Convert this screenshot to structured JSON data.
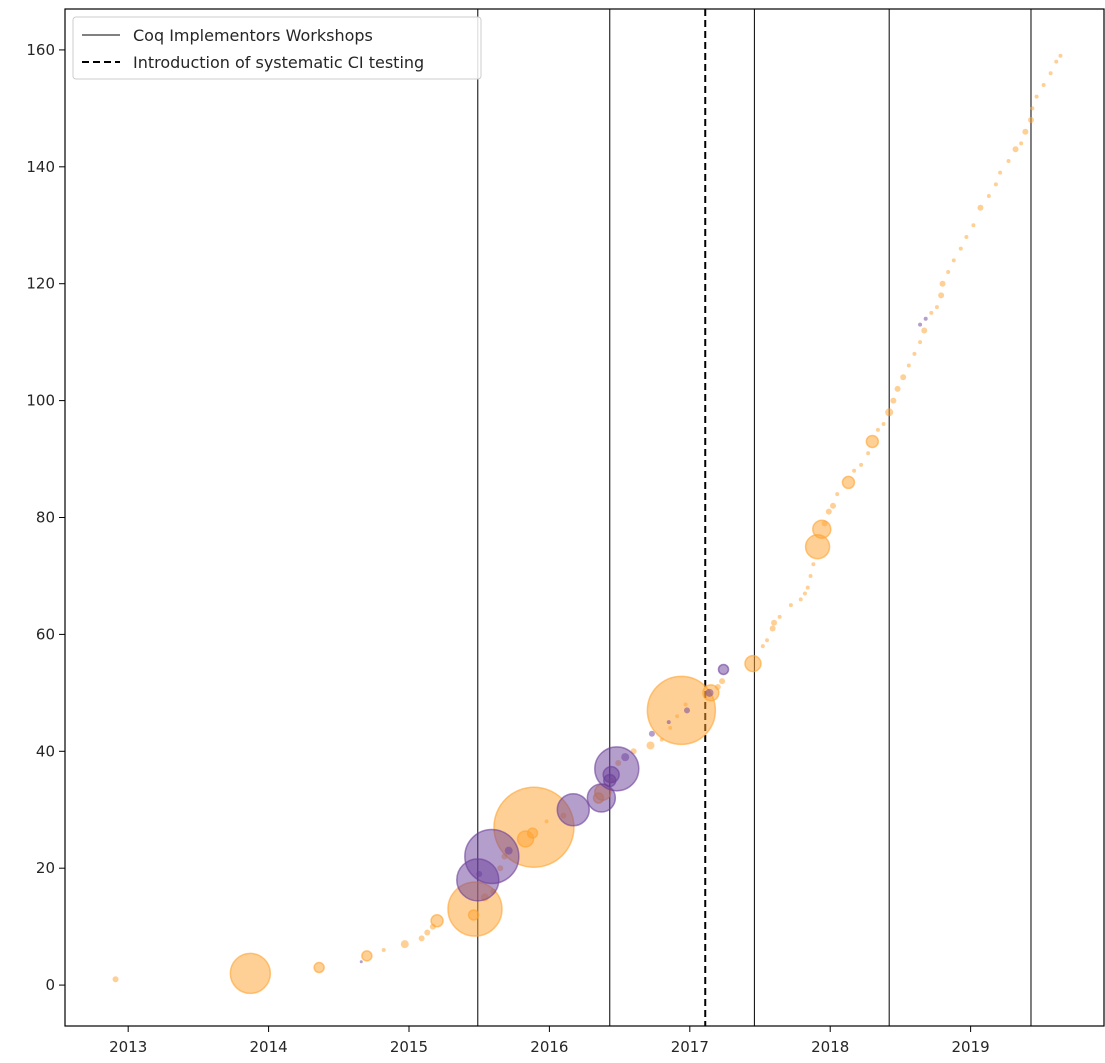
{
  "chart_data": {
    "type": "scatter",
    "title": "",
    "xlabel": "",
    "ylabel": "",
    "xlim": [
      2012.55,
      2019.95
    ],
    "ylim": [
      -7,
      167
    ],
    "x_ticks": [
      {
        "value": 2013,
        "label": "2013"
      },
      {
        "value": 2014,
        "label": "2014"
      },
      {
        "value": 2015,
        "label": "2015"
      },
      {
        "value": 2016,
        "label": "2016"
      },
      {
        "value": 2017,
        "label": "2017"
      },
      {
        "value": 2018,
        "label": "2018"
      },
      {
        "value": 2019,
        "label": "2019"
      }
    ],
    "y_ticks": [
      {
        "value": 0,
        "label": "0"
      },
      {
        "value": 20,
        "label": "20"
      },
      {
        "value": 40,
        "label": "40"
      },
      {
        "value": 60,
        "label": "60"
      },
      {
        "value": 80,
        "label": "80"
      },
      {
        "value": 100,
        "label": "100"
      },
      {
        "value": 120,
        "label": "120"
      },
      {
        "value": 140,
        "label": "140"
      },
      {
        "value": 160,
        "label": "160"
      }
    ],
    "grid": false,
    "legend": {
      "placement": "top-left",
      "entries": [
        {
          "label": "Coq Implementors Workshops",
          "style": "solid"
        },
        {
          "label": "Introduction of systematic CI testing",
          "style": "dashed"
        }
      ]
    },
    "vertical_lines": [
      {
        "x": 2015.49,
        "style": "solid"
      },
      {
        "x": 2016.43,
        "style": "solid"
      },
      {
        "x": 2017.11,
        "style": "dashed"
      },
      {
        "x": 2017.46,
        "style": "solid"
      },
      {
        "x": 2018.42,
        "style": "solid"
      },
      {
        "x": 2019.43,
        "style": "solid"
      }
    ],
    "colors": {
      "orange": "#ffa12e",
      "purple": "#6a3d9a"
    },
    "series": [
      {
        "color": "orange",
        "points": [
          [
            2012.91,
            1,
            3
          ],
          [
            2013.87,
            2,
            20
          ],
          [
            2014.36,
            3,
            5
          ],
          [
            2014.7,
            5,
            5
          ],
          [
            2014.82,
            6,
            2
          ],
          [
            2014.97,
            7,
            4
          ],
          [
            2015.09,
            8,
            3
          ],
          [
            2015.13,
            9,
            3
          ],
          [
            2015.17,
            10,
            3
          ],
          [
            2015.2,
            11,
            6
          ],
          [
            2015.46,
            12,
            5
          ],
          [
            2015.47,
            13,
            27
          ],
          [
            2015.54,
            15,
            4
          ],
          [
            2015.6,
            16,
            3
          ],
          [
            2015.65,
            20,
            3
          ],
          [
            2015.68,
            22,
            3
          ],
          [
            2015.83,
            25,
            8
          ],
          [
            2015.88,
            26,
            5
          ],
          [
            2015.89,
            27,
            40
          ],
          [
            2015.98,
            28,
            2
          ],
          [
            2016.1,
            29,
            3
          ],
          [
            2016.35,
            32,
            5
          ],
          [
            2016.38,
            33,
            8
          ],
          [
            2016.44,
            35,
            3
          ],
          [
            2016.49,
            38,
            3
          ],
          [
            2016.6,
            40,
            3
          ],
          [
            2016.72,
            41,
            4
          ],
          [
            2016.8,
            42,
            2
          ],
          [
            2016.86,
            44,
            2
          ],
          [
            2016.91,
            46,
            2
          ],
          [
            2016.94,
            47,
            34
          ],
          [
            2016.97,
            48,
            2
          ],
          [
            2017.15,
            50,
            8
          ],
          [
            2017.2,
            51,
            3
          ],
          [
            2017.23,
            52,
            3
          ],
          [
            2017.45,
            55,
            8
          ],
          [
            2017.52,
            58,
            2
          ],
          [
            2017.55,
            59,
            2
          ],
          [
            2017.59,
            61,
            3
          ],
          [
            2017.6,
            62,
            3
          ],
          [
            2017.64,
            63,
            2
          ],
          [
            2017.72,
            65,
            2
          ],
          [
            2017.79,
            66,
            2
          ],
          [
            2017.82,
            67,
            2
          ],
          [
            2017.84,
            68,
            2
          ],
          [
            2017.86,
            70,
            2
          ],
          [
            2017.88,
            72,
            2
          ],
          [
            2017.91,
            75,
            12
          ],
          [
            2017.94,
            78,
            9
          ],
          [
            2017.96,
            79,
            3
          ],
          [
            2017.99,
            81,
            3
          ],
          [
            2018.02,
            82,
            3
          ],
          [
            2018.05,
            84,
            2
          ],
          [
            2018.13,
            86,
            6
          ],
          [
            2018.17,
            88,
            2
          ],
          [
            2018.22,
            89,
            2
          ],
          [
            2018.27,
            91,
            2
          ],
          [
            2018.3,
            93,
            6
          ],
          [
            2018.34,
            95,
            2
          ],
          [
            2018.38,
            96,
            2
          ],
          [
            2018.42,
            98,
            4
          ],
          [
            2018.45,
            100,
            3
          ],
          [
            2018.48,
            102,
            3
          ],
          [
            2018.52,
            104,
            3
          ],
          [
            2018.56,
            106,
            2
          ],
          [
            2018.6,
            108,
            2
          ],
          [
            2018.64,
            110,
            2
          ],
          [
            2018.67,
            112,
            3
          ],
          [
            2018.72,
            115,
            2
          ],
          [
            2018.76,
            116,
            2
          ],
          [
            2018.79,
            118,
            3
          ],
          [
            2018.8,
            120,
            3
          ],
          [
            2018.84,
            122,
            2
          ],
          [
            2018.88,
            124,
            2
          ],
          [
            2018.93,
            126,
            2
          ],
          [
            2018.97,
            128,
            2
          ],
          [
            2019.02,
            130,
            2
          ],
          [
            2019.07,
            133,
            3
          ],
          [
            2019.13,
            135,
            2
          ],
          [
            2019.18,
            137,
            2
          ],
          [
            2019.21,
            139,
            2
          ],
          [
            2019.27,
            141,
            2
          ],
          [
            2019.32,
            143,
            3
          ],
          [
            2019.36,
            144,
            2
          ],
          [
            2019.39,
            146,
            3
          ],
          [
            2019.43,
            148,
            3
          ],
          [
            2019.44,
            150,
            2
          ],
          [
            2019.47,
            152,
            2
          ],
          [
            2019.52,
            154,
            2
          ],
          [
            2019.57,
            156,
            2
          ],
          [
            2019.61,
            158,
            2
          ],
          [
            2019.64,
            159,
            2
          ]
        ]
      },
      {
        "color": "purple",
        "points": [
          [
            2014.66,
            4,
            1.5
          ],
          [
            2015.49,
            18,
            21
          ],
          [
            2015.5,
            19,
            3
          ],
          [
            2015.59,
            22,
            27
          ],
          [
            2015.71,
            23,
            4
          ],
          [
            2016.17,
            30,
            16
          ],
          [
            2016.37,
            32,
            14
          ],
          [
            2016.43,
            35,
            6
          ],
          [
            2016.44,
            36,
            8
          ],
          [
            2016.48,
            37,
            22
          ],
          [
            2016.54,
            39,
            4
          ],
          [
            2016.73,
            43,
            3
          ],
          [
            2016.85,
            45,
            2
          ],
          [
            2016.98,
            47,
            3
          ],
          [
            2017.14,
            50,
            4
          ],
          [
            2017.24,
            54,
            5
          ],
          [
            2018.64,
            113,
            2
          ],
          [
            2018.68,
            114,
            2
          ]
        ]
      }
    ]
  }
}
